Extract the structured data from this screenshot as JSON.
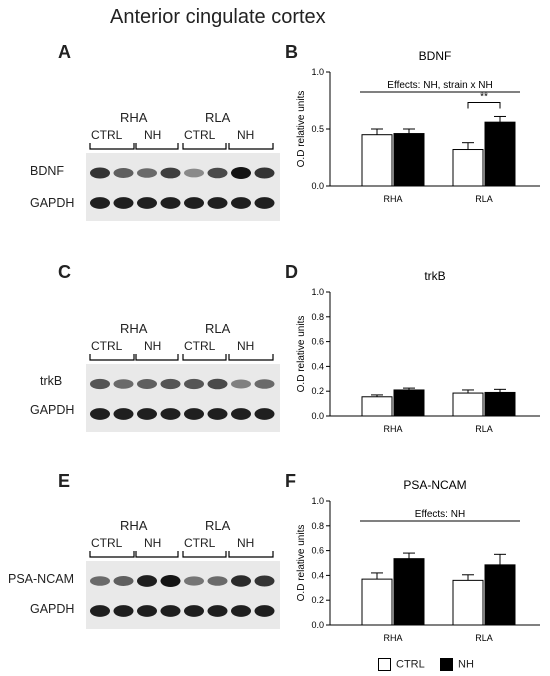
{
  "figure_title": "Anterior cingulate cortex",
  "colors": {
    "ctrl": "#ffffff",
    "nh": "#000000",
    "axis": "#000000"
  },
  "blots": [
    {
      "letter": "A",
      "groups": [
        "RHA",
        "RLA"
      ],
      "conditions": [
        "CTRL",
        "NH",
        "CTRL",
        "NH"
      ],
      "rows": [
        "BDNF",
        "GAPDH"
      ],
      "band_intensity": {
        "BDNF": [
          0.85,
          0.65,
          0.6,
          0.8,
          0.45,
          0.75,
          1.0,
          0.85
        ],
        "GAPDH": [
          0.95,
          0.95,
          0.95,
          0.95,
          0.95,
          0.95,
          0.95,
          0.95
        ]
      }
    },
    {
      "letter": "C",
      "groups": [
        "RHA",
        "RLA"
      ],
      "conditions": [
        "CTRL",
        "NH",
        "CTRL",
        "NH"
      ],
      "rows": [
        "trkB",
        "GAPDH"
      ],
      "band_intensity": {
        "trkB": [
          0.7,
          0.6,
          0.65,
          0.7,
          0.7,
          0.75,
          0.5,
          0.6
        ],
        "GAPDH": [
          0.95,
          0.95,
          0.95,
          0.95,
          0.95,
          0.95,
          0.95,
          0.95
        ]
      }
    },
    {
      "letter": "E",
      "groups": [
        "RHA",
        "RLA"
      ],
      "conditions": [
        "CTRL",
        "NH",
        "CTRL",
        "NH"
      ],
      "rows": [
        "PSA-NCAM",
        "GAPDH"
      ],
      "band_intensity": {
        "PSA-NCAM": [
          0.6,
          0.65,
          0.95,
          1.0,
          0.55,
          0.6,
          0.9,
          0.85
        ],
        "GAPDH": [
          0.95,
          0.95,
          0.95,
          0.95,
          0.95,
          0.95,
          0.95,
          0.95
        ]
      }
    }
  ],
  "chart_data": [
    {
      "letter": "B",
      "type": "bar",
      "title": "BDNF",
      "categories": [
        "RHA",
        "RLA"
      ],
      "series": [
        {
          "name": "CTRL",
          "values": [
            0.45,
            0.32
          ],
          "errors": [
            0.05,
            0.06
          ]
        },
        {
          "name": "NH",
          "values": [
            0.46,
            0.56
          ],
          "errors": [
            0.04,
            0.05
          ]
        }
      ],
      "ylabel": "O.D relative units",
      "ylim": [
        0,
        1.0
      ],
      "yticks": [
        0.0,
        0.5,
        1.0
      ],
      "effects_text": "Effects: NH, strain x NH",
      "significance": {
        "category": "RLA",
        "label": "**"
      }
    },
    {
      "letter": "D",
      "type": "bar",
      "title": "trkB",
      "categories": [
        "RHA",
        "RLA"
      ],
      "series": [
        {
          "name": "CTRL",
          "values": [
            0.155,
            0.185
          ],
          "errors": [
            0.015,
            0.025
          ]
        },
        {
          "name": "NH",
          "values": [
            0.21,
            0.19
          ],
          "errors": [
            0.015,
            0.025
          ]
        }
      ],
      "ylabel": "O.D relative units",
      "ylim": [
        0,
        1.0
      ],
      "yticks": [
        0.0,
        0.2,
        0.4,
        0.6,
        0.8,
        1.0
      ],
      "effects_text": "",
      "significance": null
    },
    {
      "letter": "F",
      "type": "bar",
      "title": "PSA-NCAM",
      "categories": [
        "RHA",
        "RLA"
      ],
      "series": [
        {
          "name": "CTRL",
          "values": [
            0.37,
            0.36
          ],
          "errors": [
            0.05,
            0.045
          ]
        },
        {
          "name": "NH",
          "values": [
            0.535,
            0.485
          ],
          "errors": [
            0.045,
            0.085
          ]
        }
      ],
      "ylabel": "O.D relative units",
      "ylim": [
        0,
        1.0
      ],
      "yticks": [
        0.0,
        0.2,
        0.4,
        0.6,
        0.8,
        1.0
      ],
      "effects_text": "Effects: NH",
      "significance": null
    }
  ],
  "legend": [
    {
      "label": "CTRL",
      "color": "#ffffff"
    },
    {
      "label": "NH",
      "color": "#000000"
    }
  ]
}
